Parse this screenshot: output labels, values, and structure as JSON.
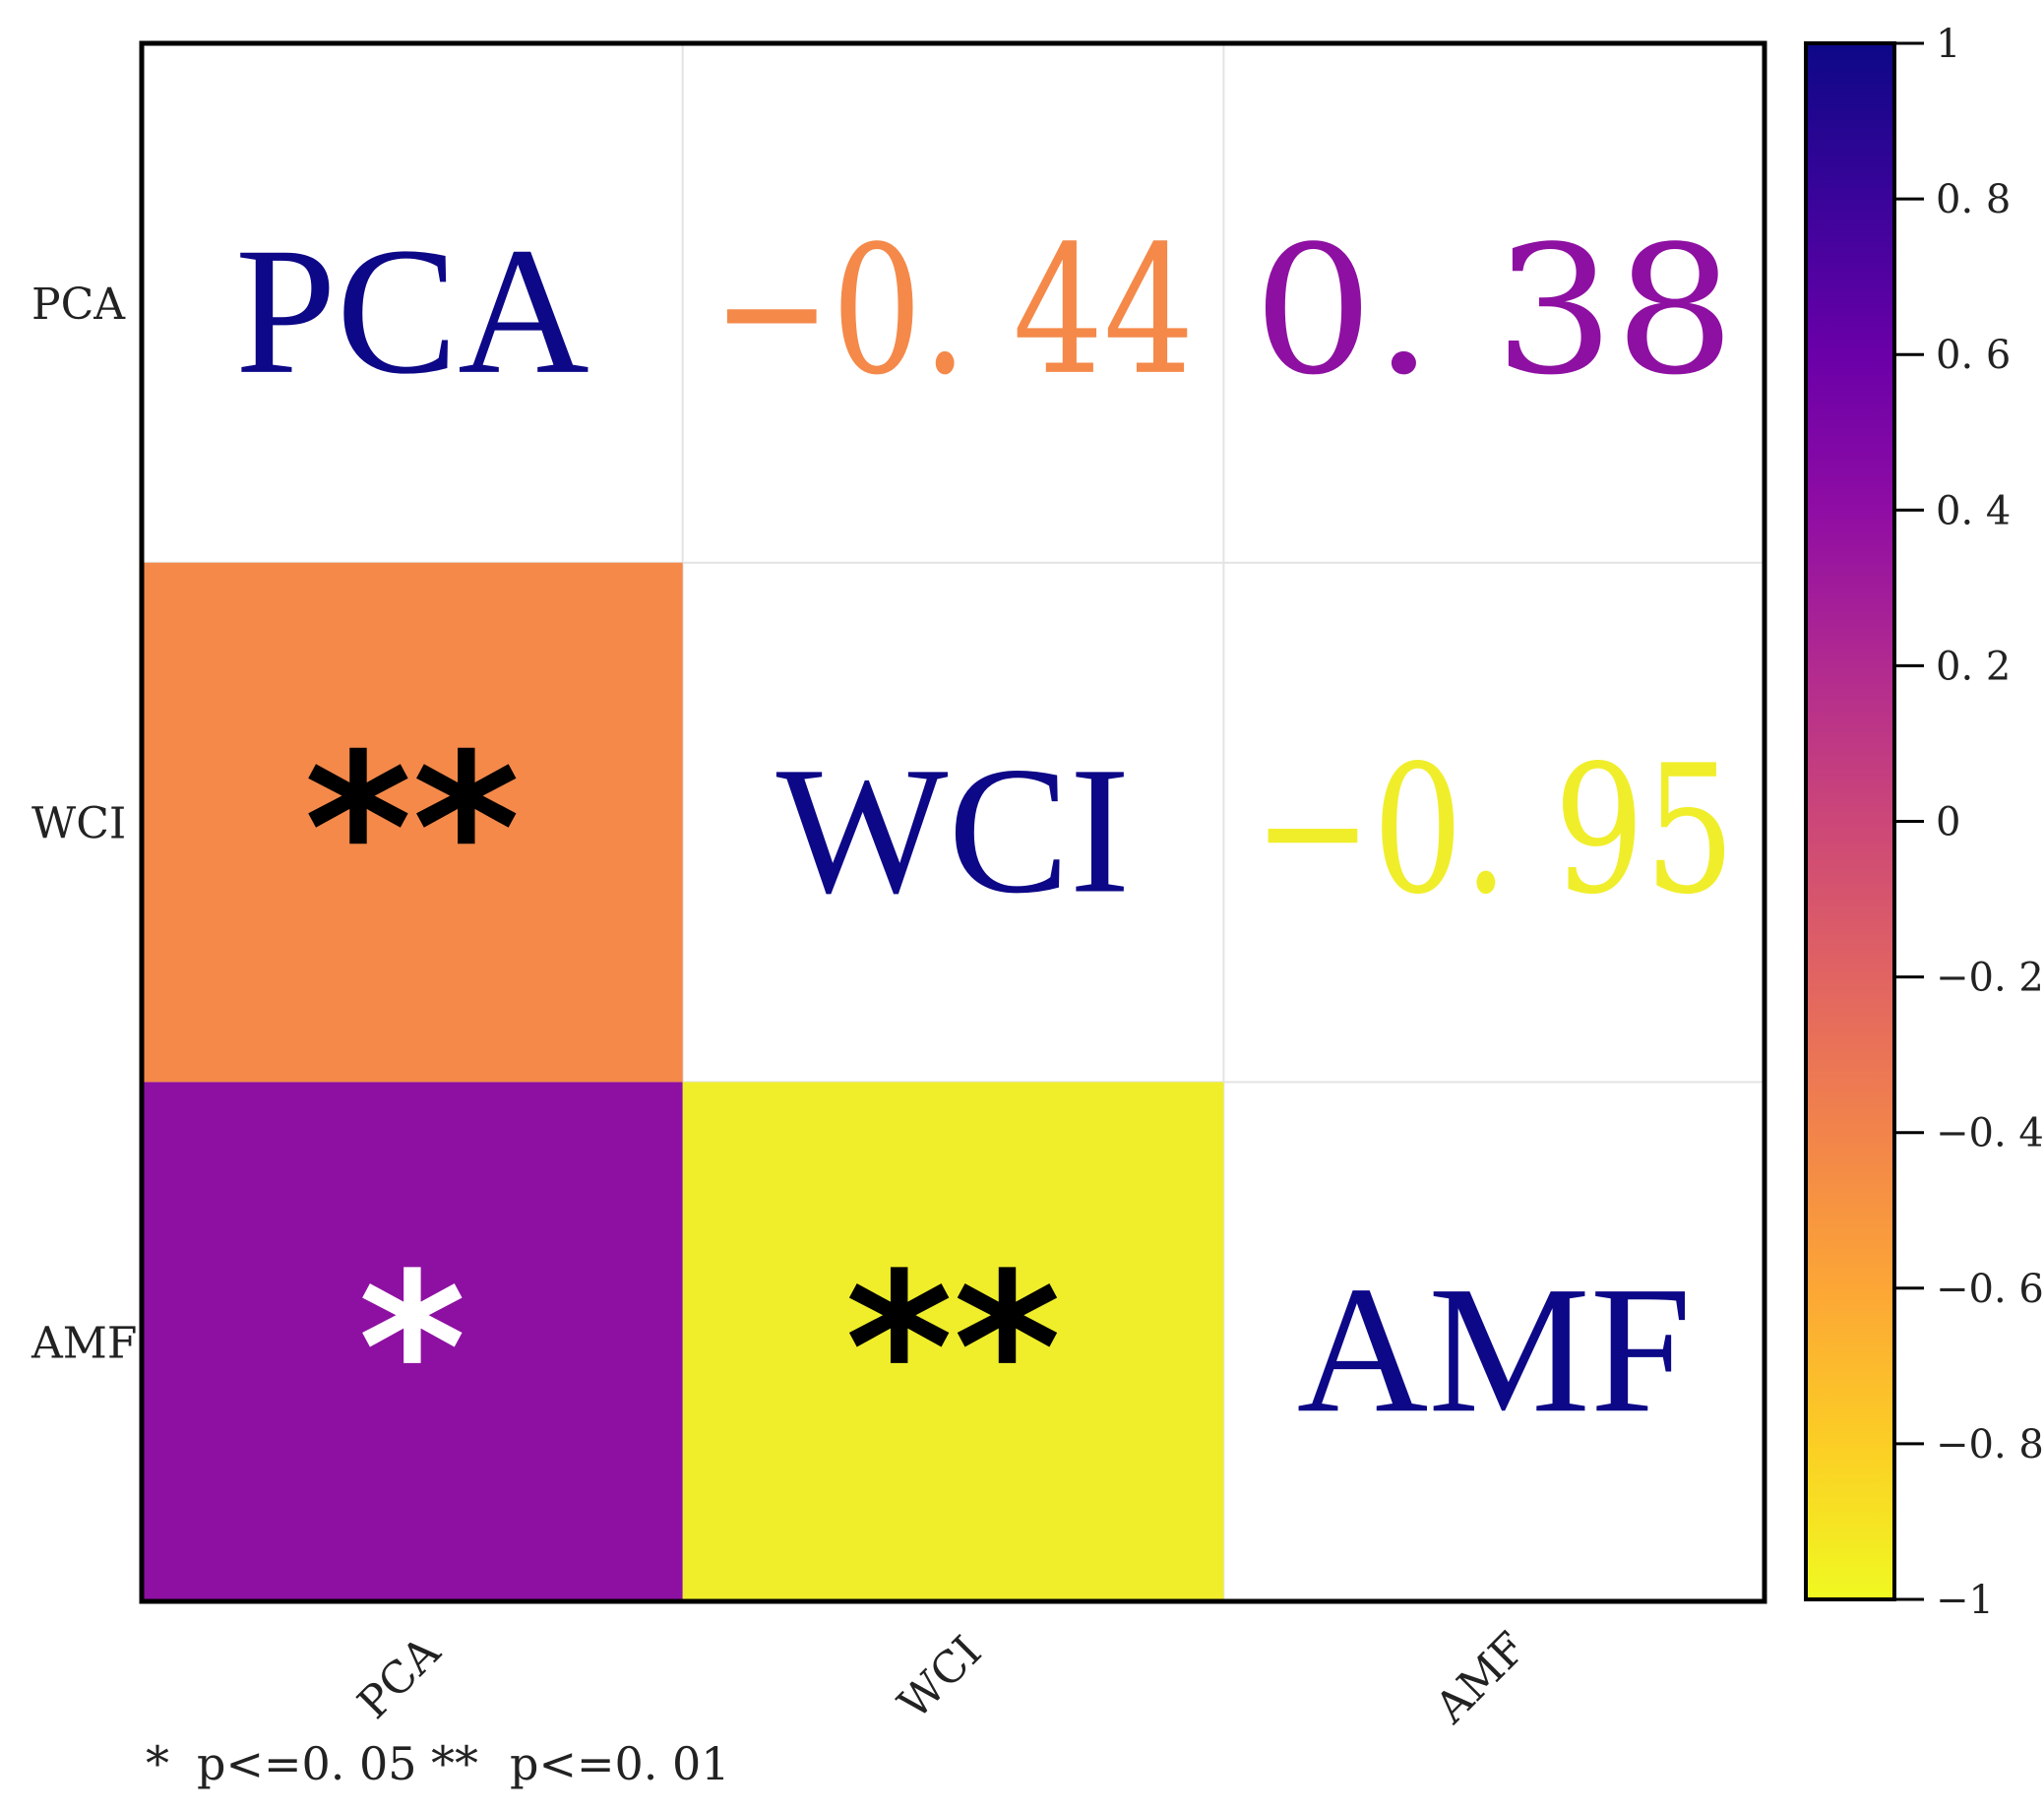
{
  "chart_data": {
    "type": "heatmap",
    "variables": [
      "PCA",
      "WCI",
      "AMF"
    ],
    "row_labels": [
      "PCA",
      "WCI",
      "AMF"
    ],
    "col_labels": [
      "PCA",
      "WCI",
      "AMF"
    ],
    "matrix": [
      [
        1,
        -0.44,
        0.38
      ],
      [
        -0.44,
        1,
        -0.95
      ],
      [
        0.38,
        -0.95,
        1
      ]
    ],
    "upper_triangle_text": [
      {
        "row": 0,
        "col": 1,
        "text": "−0. 44",
        "color": "#f4894a"
      },
      {
        "row": 0,
        "col": 2,
        "text": "0. 38",
        "color": "#8e10a2"
      },
      {
        "row": 1,
        "col": 2,
        "text": "−0. 95",
        "color": "#f0ee2a"
      }
    ],
    "diagonal_text": [
      {
        "index": 0,
        "text": "PCA",
        "color": "#0d0887"
      },
      {
        "index": 1,
        "text": "WCI",
        "color": "#0d0887"
      },
      {
        "index": 2,
        "text": "AMF",
        "color": "#0d0887"
      }
    ],
    "lower_triangle_cells": [
      {
        "row": 1,
        "col": 0,
        "fill": "#f4894a",
        "stars": "**",
        "star_color": "#000000"
      },
      {
        "row": 2,
        "col": 0,
        "fill": "#8e10a2",
        "stars": "*",
        "star_color": "#ffffff"
      },
      {
        "row": 2,
        "col": 1,
        "fill": "#f0ee2a",
        "stars": "**",
        "star_color": "#000000"
      }
    ],
    "colorbar": {
      "range": [
        -1,
        1
      ],
      "ticks": [
        1,
        0.8,
        0.6,
        0.4,
        0.2,
        0,
        -0.2,
        -0.4,
        -0.6,
        -0.8,
        -1
      ],
      "tick_labels": [
        "1",
        "0. 8",
        "0. 6",
        "0. 4",
        "0. 2",
        "0",
        "−0. 2",
        "−0. 4",
        "−0. 6",
        "−0. 8",
        "−1"
      ],
      "colormap": "plasma",
      "stops": [
        "#0d0887",
        "#3a049a",
        "#6a00a8",
        "#8f0da4",
        "#b12a90",
        "#cc4778",
        "#e16462",
        "#f2844b",
        "#fca636",
        "#fcce25",
        "#f0f921"
      ]
    },
    "legend_note": {
      "single_star": "*",
      "single_label": "p<=0. 05",
      "double_star": "**",
      "double_label": "p<=0. 01"
    }
  }
}
